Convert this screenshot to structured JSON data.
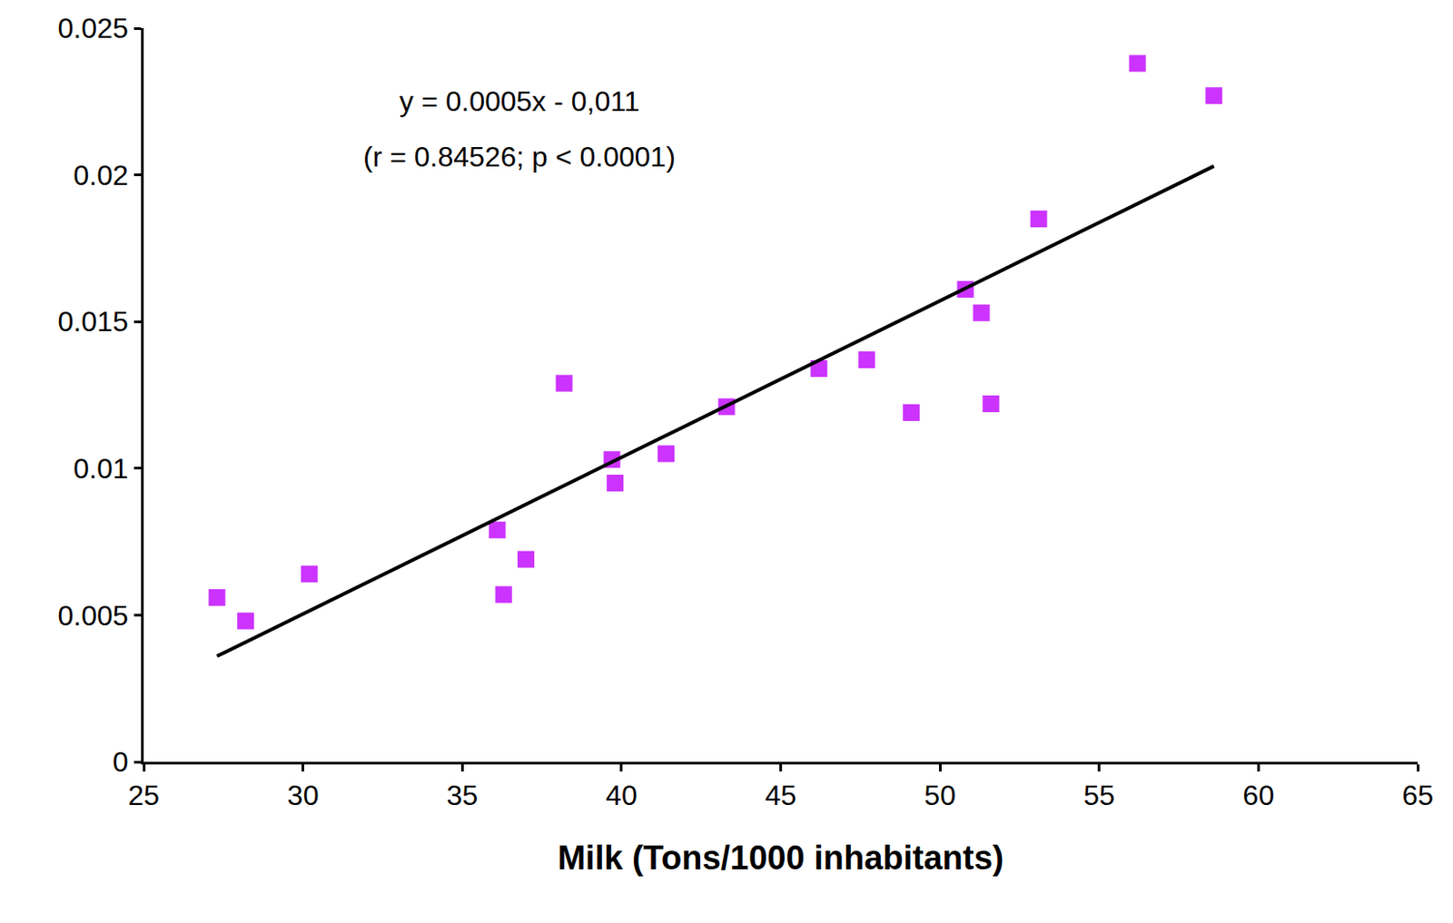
{
  "chart_data": {
    "type": "scatter",
    "x_label": "Milk (Tons/1000 inhabitants)",
    "annotations": [
      "y = 0.0005x - 0,011",
      "(r = 0.84526; p < 0.0001)"
    ],
    "series": [
      {
        "type": "scatter",
        "color": "#cc33ff",
        "marker": "square",
        "x": [
          27.3,
          28.2,
          30.2,
          36.1,
          36.3,
          37.0,
          38.2,
          39.7,
          39.8,
          41.4,
          43.3,
          46.2,
          47.7,
          49.1,
          50.8,
          51.3,
          51.6,
          53.1,
          56.2,
          58.6
        ],
        "values": [
          0.0056,
          0.0048,
          0.0064,
          0.0079,
          0.0057,
          0.0069,
          0.0129,
          0.0103,
          0.0095,
          0.0105,
          0.0121,
          0.0134,
          0.0137,
          0.0119,
          0.0161,
          0.0153,
          0.0122,
          0.0185,
          0.0238,
          0.0227
        ]
      },
      {
        "type": "line",
        "color": "#000000",
        "line_style": "solid",
        "x": [
          27.3,
          58.6
        ],
        "values": [
          0.0036,
          0.0203
        ]
      }
    ],
    "xlim": [
      25,
      65
    ],
    "xticks": [
      25,
      30,
      35,
      40,
      45,
      50,
      55,
      60,
      65
    ],
    "ylim": [
      0,
      0.025
    ],
    "yticks": [
      0,
      0.005,
      0.01,
      0.015,
      0.02,
      0.025
    ],
    "grid": false
  }
}
